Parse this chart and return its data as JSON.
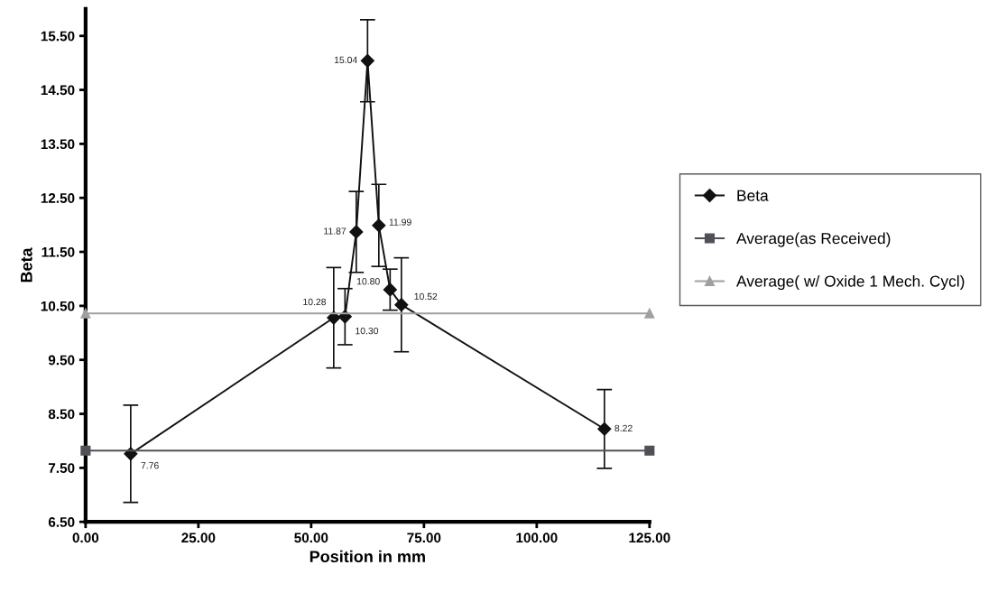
{
  "chart_data": {
    "type": "line",
    "xlabel": "Position in mm",
    "ylabel": "Beta",
    "xlim": [
      0,
      125
    ],
    "xticks": [
      {
        "value": 0,
        "label": "0.00"
      },
      {
        "value": 25,
        "label": "25.00"
      },
      {
        "value": 50,
        "label": "50.00"
      },
      {
        "value": 75,
        "label": "75.00"
      },
      {
        "value": 100,
        "label": "100.00"
      },
      {
        "value": 125,
        "label": "125.00"
      }
    ],
    "ylim": [
      6.5,
      16
    ],
    "yticks": [
      {
        "value": 6.5,
        "label": "6.50"
      },
      {
        "value": 7.5,
        "label": "7.50"
      },
      {
        "value": 8.5,
        "label": "8.50"
      },
      {
        "value": 9.5,
        "label": "9.50"
      },
      {
        "value": 10.5,
        "label": "10.50"
      },
      {
        "value": 11.5,
        "label": "11.50"
      },
      {
        "value": 12.5,
        "label": "12.50"
      },
      {
        "value": 13.5,
        "label": "13.50"
      },
      {
        "value": 14.5,
        "label": "14.50"
      },
      {
        "value": 15.5,
        "label": "15.50"
      }
    ],
    "grid": false,
    "legend": "right",
    "line_style": "solid",
    "series": [
      {
        "name": "Beta",
        "color": "#111111",
        "marker": "diamond",
        "x": [
          10,
          55,
          57.5,
          60,
          62.5,
          65,
          67.5,
          70,
          115
        ],
        "values": [
          7.76,
          10.28,
          10.3,
          11.87,
          15.04,
          11.99,
          10.8,
          10.52,
          8.22
        ],
        "errors": [
          0.9,
          0.93,
          0.52,
          0.75,
          0.76,
          0.76,
          0.38,
          0.87,
          0.73
        ],
        "value_labels": [
          "7.76",
          "10.28",
          "10.30",
          "11.87",
          "15.04",
          "11.99",
          "10.80",
          "10.52",
          "8.22"
        ]
      },
      {
        "name": "Average(as Received)",
        "color": "#505058",
        "marker": "square",
        "x": [
          0,
          125
        ],
        "values": [
          7.82,
          7.82
        ]
      },
      {
        "name": "Average( w/ Oxide 1 Mech. Cycl)",
        "color": "#a0a0a0",
        "marker": "triangle",
        "x": [
          0,
          125
        ],
        "values": [
          10.36,
          10.36
        ]
      }
    ]
  }
}
